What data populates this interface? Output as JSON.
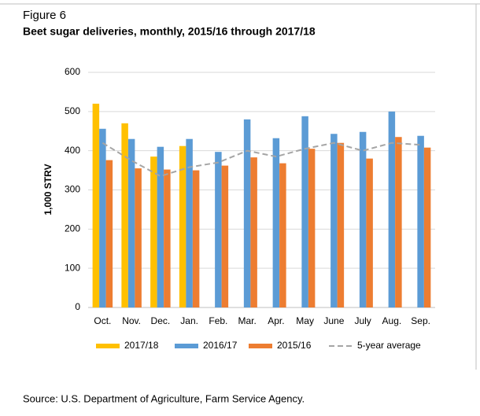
{
  "figure_label": "Figure 6",
  "chart_data": {
    "type": "bar",
    "title": "Beet sugar deliveries, monthly, 2015/16 through 2017/18",
    "y_label": "1,000 STRV",
    "categories": [
      "Oct.",
      "Nov.",
      "Dec.",
      "Jan.",
      "Feb.",
      "Mar.",
      "Apr.",
      "May",
      "June",
      "July",
      "Aug.",
      "Sep."
    ],
    "series": [
      {
        "name": "2017/18",
        "color": "#ffc000",
        "values": [
          520,
          470,
          385,
          412,
          null,
          null,
          null,
          null,
          null,
          null,
          null,
          null
        ]
      },
      {
        "name": "2016/17",
        "color": "#5b9bd5",
        "values": [
          456,
          430,
          410,
          430,
          397,
          480,
          432,
          488,
          443,
          448,
          500,
          438
        ]
      },
      {
        "name": "2015/16",
        "color": "#ed7d31",
        "values": [
          376,
          355,
          352,
          350,
          362,
          383,
          368,
          405,
          420,
          380,
          435,
          408
        ]
      },
      {
        "name": "5-year average",
        "color": "#a5a5a5",
        "type": "line",
        "dashed": true,
        "values": [
          420,
          375,
          335,
          358,
          370,
          400,
          385,
          405,
          420,
          400,
          420,
          415
        ]
      }
    ],
    "ylim": [
      0,
      600
    ],
    "yticks": [
      0,
      100,
      200,
      300,
      400,
      500,
      600
    ],
    "grid": true,
    "legend": "bottom"
  },
  "source": "Source: U.S. Department of Agriculture, Farm Service Agency."
}
